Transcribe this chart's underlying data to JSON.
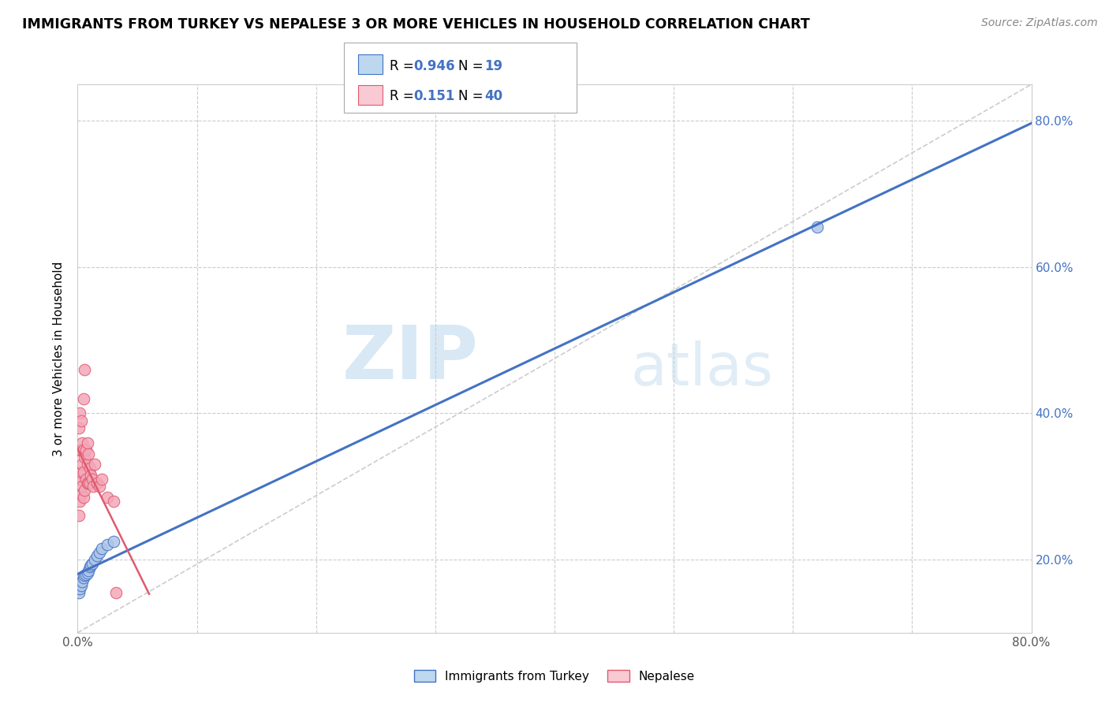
{
  "title": "IMMIGRANTS FROM TURKEY VS NEPALESE 3 OR MORE VEHICLES IN HOUSEHOLD CORRELATION CHART",
  "source": "Source: ZipAtlas.com",
  "ylabel": "3 or more Vehicles in Household",
  "legend_label1": "Immigrants from Turkey",
  "legend_label2": "Nepalese",
  "R1": 0.946,
  "N1": 19,
  "R2": 0.151,
  "N2": 40,
  "color_turkey": "#aec6e8",
  "color_nepal": "#f4a7b9",
  "color_turkey_line": "#4472c4",
  "color_nepal_line": "#e05a6e",
  "color_turkey_legend": "#bdd7ee",
  "color_nepal_legend": "#f9c9d4",
  "xlim": [
    0.0,
    0.8
  ],
  "ylim": [
    0.1,
    0.85
  ],
  "watermark_zip": "ZIP",
  "watermark_atlas": "atlas",
  "turkey_x": [
    0.001,
    0.002,
    0.003,
    0.004,
    0.005,
    0.006,
    0.007,
    0.008,
    0.009,
    0.01,
    0.011,
    0.012,
    0.014,
    0.016,
    0.018,
    0.02,
    0.025,
    0.03,
    0.62
  ],
  "turkey_y": [
    0.155,
    0.16,
    0.165,
    0.17,
    0.175,
    0.178,
    0.18,
    0.182,
    0.185,
    0.19,
    0.192,
    0.195,
    0.2,
    0.205,
    0.21,
    0.215,
    0.22,
    0.225,
    0.655
  ],
  "nepal_x": [
    0.001,
    0.001,
    0.001,
    0.002,
    0.002,
    0.002,
    0.002,
    0.003,
    0.003,
    0.003,
    0.003,
    0.004,
    0.004,
    0.004,
    0.005,
    0.005,
    0.005,
    0.005,
    0.006,
    0.006,
    0.006,
    0.007,
    0.007,
    0.008,
    0.008,
    0.008,
    0.009,
    0.009,
    0.01,
    0.01,
    0.011,
    0.012,
    0.013,
    0.014,
    0.016,
    0.018,
    0.02,
    0.025,
    0.03,
    0.032
  ],
  "nepal_y": [
    0.26,
    0.31,
    0.38,
    0.28,
    0.31,
    0.35,
    0.4,
    0.29,
    0.32,
    0.35,
    0.39,
    0.3,
    0.33,
    0.36,
    0.285,
    0.32,
    0.35,
    0.42,
    0.295,
    0.34,
    0.46,
    0.31,
    0.35,
    0.305,
    0.33,
    0.36,
    0.305,
    0.345,
    0.305,
    0.325,
    0.315,
    0.31,
    0.3,
    0.33,
    0.305,
    0.3,
    0.31,
    0.285,
    0.28,
    0.155
  ],
  "ytick_positions": [
    0.2,
    0.4,
    0.6,
    0.8
  ],
  "ytick_labels": [
    "20.0%",
    "40.0%",
    "60.0%",
    "80.0%"
  ],
  "xtick_positions": [
    0.0,
    0.1,
    0.2,
    0.3,
    0.4,
    0.5,
    0.6,
    0.7,
    0.8
  ],
  "xtick_labels": [
    "0.0%",
    "",
    "",
    "",
    "",
    "",
    "",
    "",
    "80.0%"
  ]
}
